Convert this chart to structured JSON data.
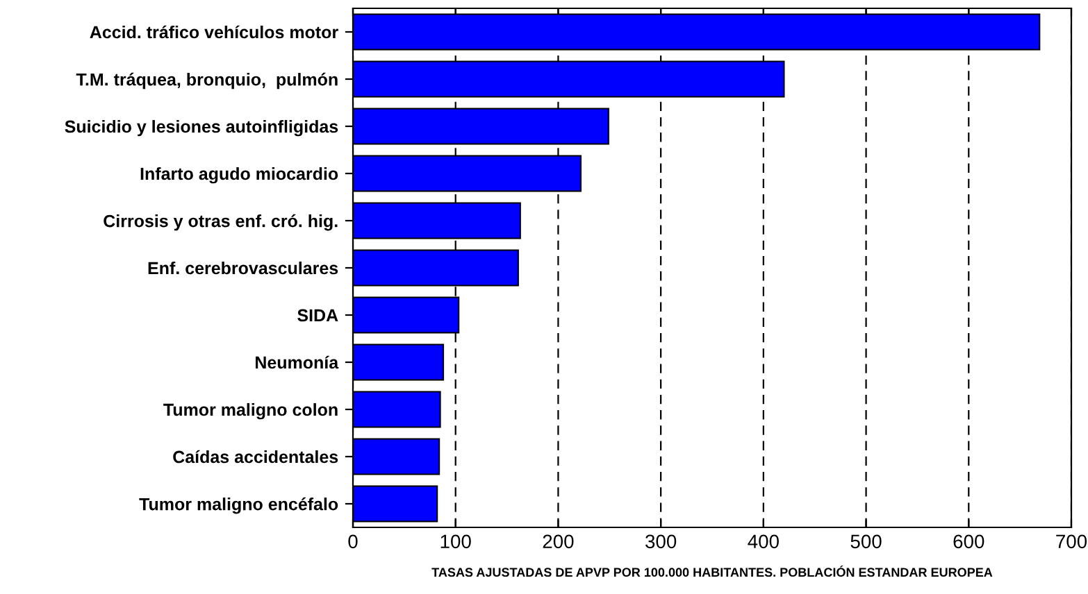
{
  "chart_data": {
    "type": "bar",
    "orientation": "horizontal",
    "xlabel": "TASAS AJUSTADAS DE APVP POR 100.000 HABITANTES. POBLACIÓN ESTANDAR EUROPEA",
    "categories": [
      "Accid. tráfico vehículos motor",
      "T.M. tráquea, bronquio,  pulmón",
      "Suicidio y lesiones autoinfligidas",
      "Infarto agudo miocardio",
      "Cirrosis y otras enf. cró. hig.",
      "Enf. cerebrovasculares",
      "SIDA",
      "Neumonía",
      "Tumor maligno colon",
      "Caídas accidentales",
      "Tumor maligno encéfalo"
    ],
    "values": [
      669,
      420,
      249,
      222,
      163,
      161,
      103,
      88,
      85,
      84,
      82
    ],
    "color": "#0000ff",
    "xlim": [
      0,
      700
    ],
    "xticks": [
      0,
      100,
      200,
      300,
      400,
      500,
      600,
      700
    ],
    "grid": "x",
    "line_style": "dashed"
  }
}
